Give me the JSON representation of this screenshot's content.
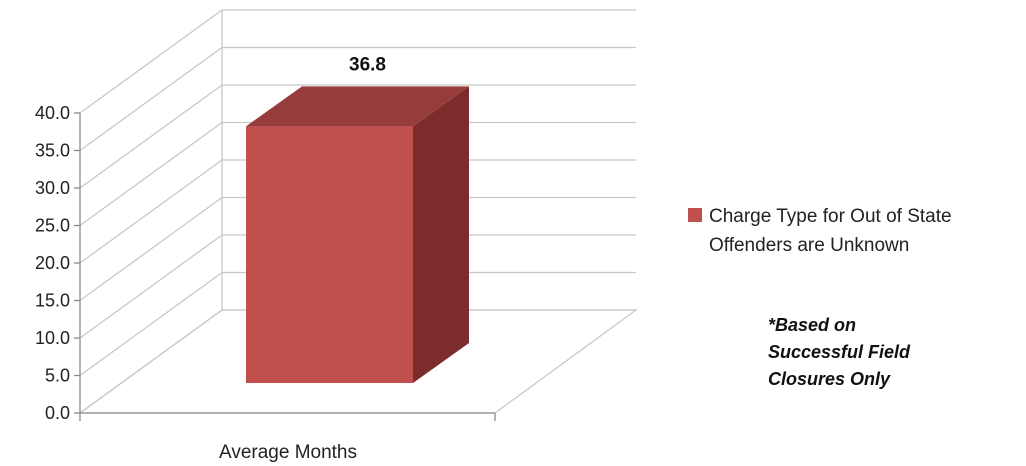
{
  "chart_data": {
    "type": "bar",
    "categories": [
      "Average Months"
    ],
    "series": [
      {
        "name": "Charge Type for Out of State Offenders are Unknown",
        "values": [
          36.8
        ],
        "color": "#c0504d"
      }
    ],
    "data_labels": [
      "36.8"
    ],
    "yticks": [
      "0.0",
      "5.0",
      "10.0",
      "15.0",
      "20.0",
      "25.0",
      "30.0",
      "35.0",
      "40.0"
    ],
    "ylim": [
      0,
      40
    ],
    "grid": true,
    "style": "3d-column",
    "legend_position": "right"
  },
  "note": "*Based on Successful Field Closures Only"
}
